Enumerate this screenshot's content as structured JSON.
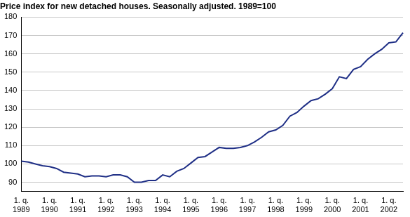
{
  "chart_data": {
    "type": "line",
    "title": "Price index for new detached houses. Seasonally adjusted. 1989=100",
    "categories": [
      "1. q. 1989",
      null,
      null,
      null,
      "1. q. 1990",
      null,
      null,
      null,
      "1. q. 1991",
      null,
      null,
      null,
      "1. q. 1992",
      null,
      null,
      null,
      "1. q. 1993",
      null,
      null,
      null,
      "1. q. 1994",
      null,
      null,
      null,
      "1. q. 1995",
      null,
      null,
      null,
      "1. q. 1996",
      null,
      null,
      null,
      "1. q. 1997",
      null,
      null,
      null,
      "1. q. 1998",
      null,
      null,
      null,
      "1. q. 1999",
      null,
      null,
      null,
      "1. q. 2000",
      null,
      null,
      null,
      "1. q. 2001",
      null,
      null,
      null,
      "1. q. 2002",
      null,
      null
    ],
    "values": [
      101.5,
      101,
      100,
      99,
      98.5,
      97.5,
      95.5,
      95,
      94.5,
      93,
      93.5,
      93.5,
      93,
      94,
      94,
      93,
      90,
      90,
      91,
      91,
      94,
      93,
      96,
      97.5,
      100.5,
      103.5,
      104,
      106.5,
      109,
      108.5,
      108.5,
      109,
      110,
      112,
      114.5,
      117.5,
      118.5,
      121,
      126,
      128,
      131.5,
      134.5,
      135.5,
      138,
      141,
      147.5,
      146.5,
      151.5,
      153,
      157,
      160,
      162.5,
      166,
      166.5,
      171.5
    ],
    "color": "#1f2f86",
    "ylim": [
      85,
      180
    ],
    "yticks": [
      90,
      100,
      110,
      120,
      130,
      140,
      150,
      160,
      170,
      180
    ],
    "grid": true
  }
}
